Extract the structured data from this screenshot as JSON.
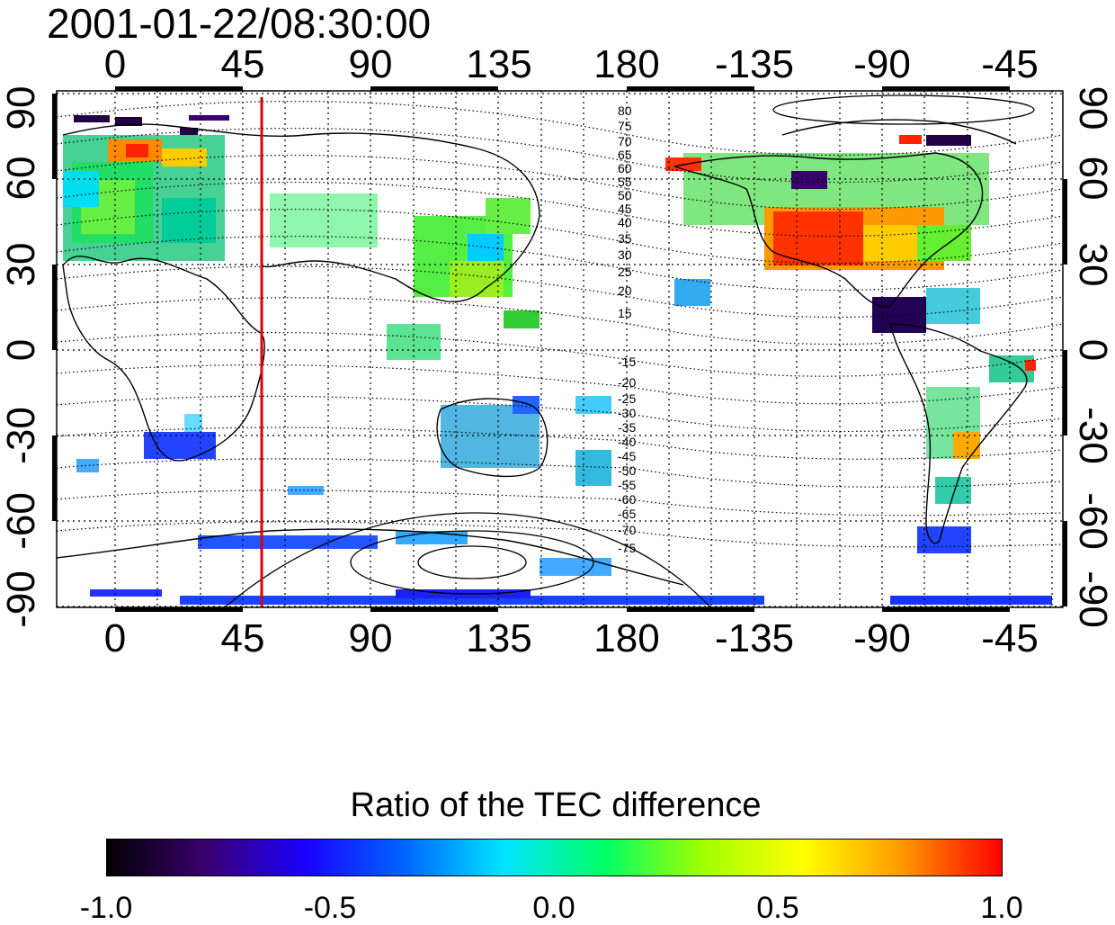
{
  "timestamp": "2001-01-22/08:30:00",
  "colorbar_title": "Ratio of the TEC difference",
  "colorbar_ticks": [
    "-1.0",
    "-0.5",
    "0.0",
    "0.5",
    "1.0"
  ],
  "colorbar_colors": [
    "#000000",
    "#3a0070",
    "#1a00ff",
    "#0066ff",
    "#00e5ff",
    "#00ff66",
    "#a0ff00",
    "#ffff00",
    "#ff9900",
    "#ff0000"
  ],
  "longitude_labels": [
    "0",
    "45",
    "90",
    "135",
    "180",
    "-135",
    "-90",
    "-45"
  ],
  "latitude_labels": [
    "90",
    "60",
    "30",
    "0",
    "-30",
    "-60",
    "-90"
  ],
  "north_contour_labels": [
    "80",
    "75",
    "70",
    "65",
    "60",
    "55",
    "50",
    "45",
    "40",
    "35",
    "30",
    "25",
    "20",
    "15"
  ],
  "south_contour_labels": [
    "-15",
    "-20",
    "-25",
    "-30",
    "-35",
    "-40",
    "-45",
    "-50",
    "-55",
    "-60",
    "-65",
    "-70",
    "-75"
  ],
  "marker_line": {
    "longitude": 53,
    "color": "#dd0000"
  },
  "map_style": {
    "projection": "equirectangular",
    "grid": "dotted",
    "coastlines": "black"
  }
}
